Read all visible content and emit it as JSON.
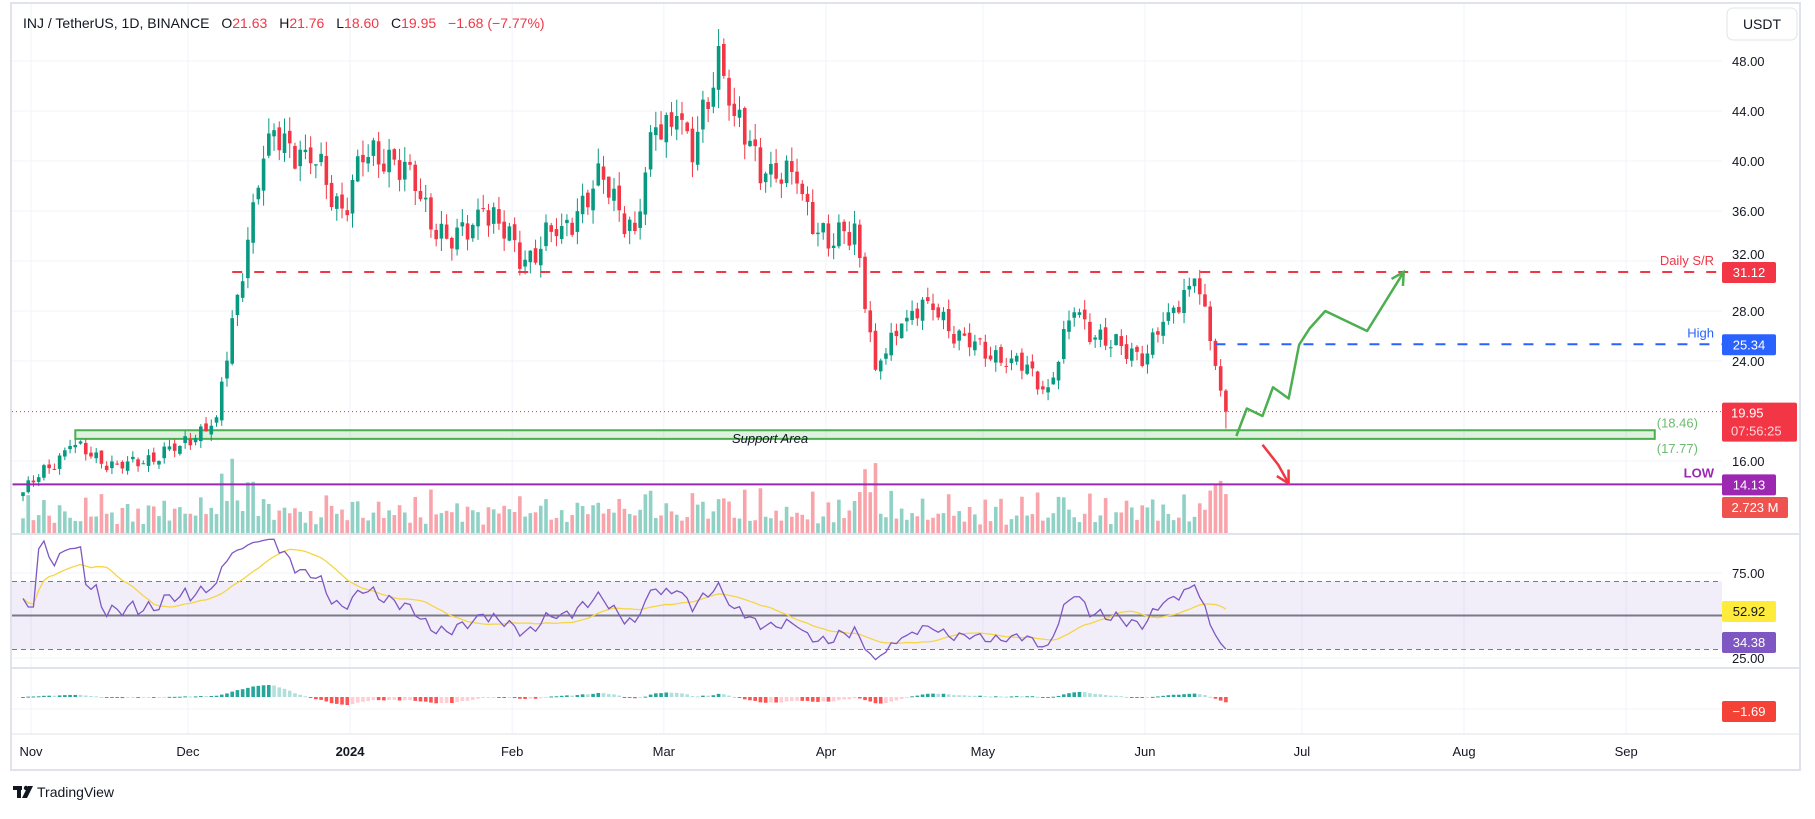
{
  "header": {
    "symbol": "INJ / TetherUS, 1D, BINANCE",
    "o_label": "O",
    "o": "21.63",
    "h_label": "H",
    "h": "21.76",
    "l_label": "L",
    "l": "18.60",
    "c_label": "C",
    "c": "19.95",
    "change": "−1.68 (−7.77%)"
  },
  "currency_button": "USDT",
  "branding": "TradingView",
  "colors": {
    "up": "#089981",
    "down": "#f23645",
    "sr": "#f23645",
    "high": "#2962ff",
    "low": "#9c27b0",
    "support": "#4caf50",
    "rsi": "#7e57c2",
    "rsi_ma": "#f5d547",
    "arrow_up": "#4caf50",
    "arrow_down": "#f23645"
  },
  "chart_data": {
    "type": "candlestick",
    "title": "INJ / TetherUS, 1D, BINANCE",
    "ylabel": "USDT",
    "ylim": [
      12,
      52
    ],
    "price_ticks": [
      "48.00",
      "44.00",
      "40.00",
      "36.00",
      "32.00",
      "28.00",
      "24.00",
      "16.00"
    ],
    "price_tick_values": [
      48,
      44,
      40,
      36,
      32,
      28,
      24,
      16
    ],
    "time_ticks": [
      {
        "label": "Nov",
        "day": 0
      },
      {
        "label": "Dec",
        "day": 30
      },
      {
        "label": "2024",
        "day": 61,
        "bold": true
      },
      {
        "label": "Feb",
        "day": 92
      },
      {
        "label": "Mar",
        "day": 121
      },
      {
        "label": "Apr",
        "day": 152
      },
      {
        "label": "May",
        "day": 182
      },
      {
        "label": "Jun",
        "day": 213
      },
      {
        "label": "Jul",
        "day": 243
      },
      {
        "label": "Aug",
        "day": 274
      },
      {
        "label": "Sep",
        "day": 305
      }
    ],
    "close_keypoints_day_price": [
      [
        0,
        13.5
      ],
      [
        9,
        17.2
      ],
      [
        19,
        15.4
      ],
      [
        30,
        17.2
      ],
      [
        37,
        19.5
      ],
      [
        41,
        29.3
      ],
      [
        44,
        36.7
      ],
      [
        47,
        42.2
      ],
      [
        54,
        40.9
      ],
      [
        61,
        36.2
      ],
      [
        65,
        39.9
      ],
      [
        70,
        40.9
      ],
      [
        75,
        37.6
      ],
      [
        82,
        33.0
      ],
      [
        88,
        36.2
      ],
      [
        96,
        32.1
      ],
      [
        103,
        34.8
      ],
      [
        111,
        38.5
      ],
      [
        117,
        34.4
      ],
      [
        121,
        42.7
      ],
      [
        125,
        43.6
      ],
      [
        128,
        39.9
      ],
      [
        133,
        49.2
      ],
      [
        136,
        43.6
      ],
      [
        142,
        39.0
      ],
      [
        148,
        38.2
      ],
      [
        154,
        33.0
      ],
      [
        159,
        35.0
      ],
      [
        163,
        23.3
      ],
      [
        168,
        27.0
      ],
      [
        173,
        28.8
      ],
      [
        181,
        25.1
      ],
      [
        189,
        24.2
      ],
      [
        196,
        21.9
      ],
      [
        201,
        27.9
      ],
      [
        208,
        25.1
      ],
      [
        215,
        24.6
      ],
      [
        219,
        27.9
      ],
      [
        224,
        30.6
      ],
      [
        227,
        25.6
      ],
      [
        229,
        21.63
      ],
      [
        230,
        19.95
      ]
    ],
    "last_candle": {
      "open": 21.63,
      "high": 21.76,
      "low": 18.6,
      "close": 19.95
    },
    "levels": [
      {
        "name": "daily-sr",
        "label": "Daily S/R",
        "value": 31.12,
        "value_label": "31.12",
        "start_day": 40,
        "style": "dashed"
      },
      {
        "name": "high",
        "label": "High",
        "value": 25.34,
        "value_label": "25.34",
        "start_day": 228,
        "style": "dashed"
      },
      {
        "name": "low",
        "label": "LOW",
        "value": 14.13,
        "value_label": "14.13",
        "start_day": -2,
        "style": "solid"
      }
    ],
    "support_area": {
      "label": "Support Area",
      "top": 18.46,
      "bottom": 17.77,
      "top_label": "(18.46)",
      "bottom_label": "(17.77)",
      "start_day": 10,
      "end_day": 312
    },
    "current_price": {
      "value": 19.95,
      "label": "19.95",
      "countdown": "07:56:25"
    },
    "volume": {
      "last_label": "2.723 M"
    },
    "rsi": {
      "ticks": [
        "75.00",
        "25.00"
      ],
      "tick_values": [
        75,
        25
      ],
      "upper": 70,
      "middle": 50,
      "lower": 30,
      "value_label": "34.38",
      "ma_label": "52.92"
    },
    "macd_hist": {
      "value_label": "−1.69"
    },
    "projection_up_days_price": [
      [
        232,
        18.0
      ],
      [
        234,
        20.2
      ],
      [
        237,
        19.6
      ],
      [
        239,
        21.9
      ],
      [
        242,
        21.0
      ],
      [
        244,
        25.3
      ],
      [
        246,
        26.6
      ],
      [
        249,
        28.0
      ],
      [
        257,
        26.4
      ],
      [
        264,
        31.12
      ]
    ],
    "projection_down_days_price": [
      [
        237,
        17.3
      ],
      [
        240,
        15.7
      ],
      [
        242,
        14.2
      ]
    ]
  }
}
